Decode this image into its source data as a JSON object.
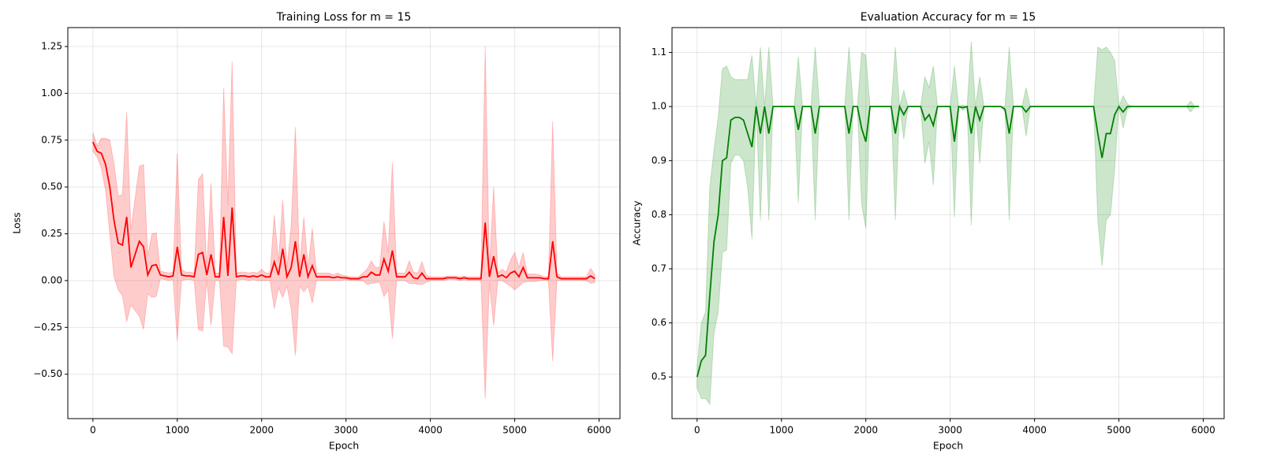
{
  "chart_data": [
    {
      "type": "line",
      "title": "Training Loss for m = 15",
      "xlabel": "Epoch",
      "ylabel": "Loss",
      "x": [
        0,
        50,
        100,
        150,
        200,
        250,
        300,
        350,
        400,
        450,
        500,
        550,
        600,
        650,
        700,
        750,
        800,
        850,
        900,
        950,
        1000,
        1050,
        1100,
        1150,
        1200,
        1250,
        1300,
        1350,
        1400,
        1450,
        1500,
        1550,
        1600,
        1650,
        1700,
        1750,
        1800,
        1850,
        1900,
        1950,
        2000,
        2050,
        2100,
        2150,
        2200,
        2250,
        2300,
        2350,
        2400,
        2450,
        2500,
        2550,
        2600,
        2650,
        2700,
        2750,
        2800,
        2850,
        2900,
        2950,
        3000,
        3050,
        3100,
        3150,
        3200,
        3250,
        3300,
        3350,
        3400,
        3450,
        3500,
        3550,
        3600,
        3650,
        3700,
        3750,
        3800,
        3850,
        3900,
        3950,
        4000,
        4050,
        4100,
        4150,
        4200,
        4250,
        4300,
        4350,
        4400,
        4450,
        4500,
        4550,
        4600,
        4650,
        4700,
        4750,
        4800,
        4850,
        4900,
        4950,
        5000,
        5050,
        5100,
        5150,
        5200,
        5250,
        5300,
        5350,
        5400,
        5450,
        5500,
        5550,
        5600,
        5650,
        5700,
        5750,
        5800,
        5850,
        5900,
        5950
      ],
      "series": [
        {
          "color": "#ff0000",
          "values": [
            0.74,
            0.69,
            0.68,
            0.62,
            0.5,
            0.32,
            0.2,
            0.19,
            0.34,
            0.07,
            0.14,
            0.21,
            0.18,
            0.03,
            0.08,
            0.085,
            0.03,
            0.025,
            0.02,
            0.025,
            0.18,
            0.03,
            0.025,
            0.025,
            0.02,
            0.14,
            0.15,
            0.03,
            0.14,
            0.02,
            0.02,
            0.34,
            0.025,
            0.39,
            0.02,
            0.025,
            0.025,
            0.02,
            0.025,
            0.02,
            0.03,
            0.02,
            0.02,
            0.1,
            0.03,
            0.17,
            0.02,
            0.07,
            0.21,
            0.02,
            0.14,
            0.02,
            0.08,
            0.02,
            0.02,
            0.02,
            0.02,
            0.015,
            0.02,
            0.015,
            0.015,
            0.01,
            0.01,
            0.01,
            0.02,
            0.02,
            0.045,
            0.03,
            0.03,
            0.115,
            0.05,
            0.16,
            0.02,
            0.02,
            0.02,
            0.045,
            0.015,
            0.01,
            0.04,
            0.01,
            0.01,
            0.01,
            0.01,
            0.01,
            0.015,
            0.015,
            0.015,
            0.01,
            0.015,
            0.01,
            0.01,
            0.01,
            0.01,
            0.31,
            0.02,
            0.13,
            0.02,
            0.03,
            0.015,
            0.04,
            0.05,
            0.02,
            0.07,
            0.015,
            0.015,
            0.015,
            0.015,
            0.01,
            0.01,
            0.21,
            0.02,
            0.01,
            0.01,
            0.01,
            0.01,
            0.01,
            0.01,
            0.01,
            0.025,
            0.01
          ],
          "errors": [
            0.05,
            0.03,
            0.08,
            0.14,
            0.25,
            0.3,
            0.25,
            0.27,
            0.56,
            0.2,
            0.3,
            0.4,
            0.44,
            0.1,
            0.17,
            0.17,
            0.02,
            0.02,
            0.02,
            0.02,
            0.5,
            0.03,
            0.02,
            0.02,
            0.02,
            0.4,
            0.42,
            0.03,
            0.38,
            0.02,
            0.02,
            0.69,
            0.38,
            0.78,
            0.02,
            0.02,
            0.02,
            0.02,
            0.02,
            0.02,
            0.03,
            0.02,
            0.02,
            0.25,
            0.07,
            0.26,
            0.05,
            0.22,
            0.61,
            0.05,
            0.2,
            0.05,
            0.2,
            0.02,
            0.02,
            0.02,
            0.02,
            0.015,
            0.02,
            0.015,
            0.01,
            0.01,
            0.01,
            0.01,
            0.02,
            0.04,
            0.06,
            0.04,
            0.04,
            0.2,
            0.1,
            0.47,
            0.02,
            0.02,
            0.02,
            0.06,
            0.03,
            0.03,
            0.06,
            0.02,
            0.01,
            0.01,
            0.01,
            0.01,
            0.01,
            0.01,
            0.01,
            0.01,
            0.01,
            0.01,
            0.01,
            0.01,
            0.01,
            0.94,
            0.03,
            0.37,
            0.02,
            0.03,
            0.03,
            0.07,
            0.1,
            0.05,
            0.08,
            0.02,
            0.02,
            0.02,
            0.015,
            0.01,
            0.01,
            0.64,
            0.02,
            0.01,
            0.01,
            0.01,
            0.01,
            0.01,
            0.01,
            0.01,
            0.04,
            0.02
          ]
        }
      ],
      "xlim": [
        -297.5,
        6247.5
      ],
      "xticks": [
        0,
        1000,
        2000,
        3000,
        4000,
        5000,
        6000
      ],
      "ylim": [
        -0.737,
        1.351
      ],
      "yticks": [
        {
          "value": -0.5,
          "label": "−0.50"
        },
        {
          "value": -0.25,
          "label": "−0.25"
        },
        {
          "value": 0,
          "label": "0.00"
        },
        {
          "value": 0.25,
          "label": "0.25"
        },
        {
          "value": 0.5,
          "label": "0.50"
        },
        {
          "value": 0.75,
          "label": "0.75"
        },
        {
          "value": 1,
          "label": "1.00"
        },
        {
          "value": 1.25,
          "label": "1.25"
        }
      ],
      "grid": true
    },
    {
      "type": "line",
      "title": "Evaluation Accuracy for m = 15",
      "xlabel": "Epoch",
      "ylabel": "Accuracy",
      "x": [
        0,
        50,
        100,
        150,
        200,
        250,
        300,
        350,
        400,
        450,
        500,
        550,
        600,
        650,
        700,
        750,
        800,
        850,
        900,
        950,
        1000,
        1050,
        1100,
        1150,
        1200,
        1250,
        1300,
        1350,
        1400,
        1450,
        1500,
        1550,
        1600,
        1650,
        1700,
        1750,
        1800,
        1850,
        1900,
        1950,
        2000,
        2050,
        2100,
        2150,
        2200,
        2250,
        2300,
        2350,
        2400,
        2450,
        2500,
        2550,
        2600,
        2650,
        2700,
        2750,
        2800,
        2850,
        2900,
        2950,
        3000,
        3050,
        3100,
        3150,
        3200,
        3250,
        3300,
        3350,
        3400,
        3450,
        3500,
        3550,
        3600,
        3650,
        3700,
        3750,
        3800,
        3850,
        3900,
        3950,
        4000,
        4050,
        4100,
        4150,
        4200,
        4250,
        4300,
        4350,
        4400,
        4450,
        4500,
        4550,
        4600,
        4650,
        4700,
        4750,
        4800,
        4850,
        4900,
        4950,
        5000,
        5050,
        5100,
        5150,
        5200,
        5250,
        5300,
        5350,
        5400,
        5450,
        5500,
        5550,
        5600,
        5650,
        5700,
        5750,
        5800,
        5850,
        5900,
        5950
      ],
      "series": [
        {
          "color": "#008000",
          "values": [
            0.5,
            0.53,
            0.54,
            0.65,
            0.75,
            0.8,
            0.9,
            0.905,
            0.975,
            0.98,
            0.98,
            0.975,
            0.95,
            0.925,
            1,
            0.95,
            1,
            0.95,
            1,
            1,
            1,
            1,
            1,
            1,
            0.957,
            1,
            1,
            1,
            0.95,
            1,
            1,
            1,
            1,
            1,
            1,
            1,
            0.95,
            1,
            1,
            0.96,
            0.935,
            1,
            1,
            1,
            1,
            1,
            1,
            0.95,
            1,
            0.985,
            1,
            1,
            1,
            1,
            0.975,
            0.985,
            0.965,
            1,
            1,
            1,
            1,
            0.935,
            1,
            0.998,
            1,
            0.95,
            1,
            0.975,
            1,
            1,
            1,
            1,
            1,
            0.995,
            0.95,
            1,
            1,
            1,
            0.99,
            1,
            1,
            1,
            1,
            1,
            1,
            1,
            1,
            1,
            1,
            1,
            1,
            1,
            1,
            1,
            1,
            0.95,
            0.905,
            0.95,
            0.95,
            0.985,
            1,
            0.99,
            1,
            1,
            1,
            1,
            1,
            1,
            1,
            1,
            1,
            1,
            1,
            1,
            1,
            1,
            1,
            1,
            1,
            1
          ],
          "errors": [
            0.02,
            0.07,
            0.08,
            0.2,
            0.17,
            0.18,
            0.17,
            0.17,
            0.08,
            0.07,
            0.07,
            0.075,
            0.1,
            0.17,
            0,
            0.16,
            0,
            0.16,
            0,
            0,
            0,
            0,
            0,
            0,
            0.135,
            0,
            0,
            0,
            0.16,
            0,
            0,
            0,
            0,
            0,
            0,
            0,
            0.16,
            0,
            0,
            0.14,
            0.16,
            0,
            0,
            0,
            0,
            0,
            0,
            0.16,
            0,
            0.045,
            0,
            0,
            0,
            0,
            0.08,
            0.05,
            0.11,
            0,
            0,
            0,
            0,
            0.14,
            0,
            0.005,
            0,
            0.17,
            0,
            0.08,
            0,
            0,
            0,
            0,
            0,
            0.005,
            0.16,
            0,
            0,
            0,
            0.045,
            0,
            0,
            0,
            0,
            0,
            0,
            0,
            0,
            0,
            0,
            0,
            0,
            0,
            0,
            0,
            0,
            0.16,
            0.2,
            0.16,
            0.15,
            0.1,
            0,
            0.03,
            0.005,
            0,
            0,
            0,
            0,
            0,
            0,
            0,
            0,
            0,
            0,
            0,
            0,
            0,
            0,
            0.01,
            0,
            0
          ]
        }
      ],
      "xlim": [
        -297.5,
        6247.5
      ],
      "xticks": [
        0,
        1000,
        2000,
        3000,
        4000,
        5000,
        6000
      ],
      "ylim": [
        0.423,
        1.146
      ],
      "yticks": [
        0.5,
        0.6,
        0.7,
        0.8,
        0.9,
        {
          "value": 1,
          "label": "1.0"
        },
        1.1
      ],
      "grid": true
    }
  ]
}
